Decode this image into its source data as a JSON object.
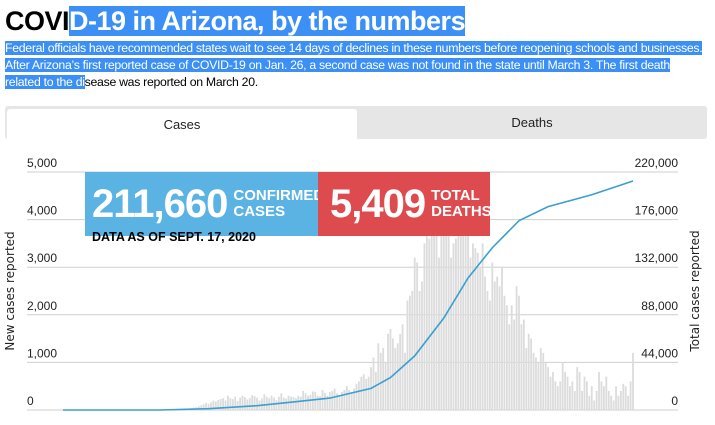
{
  "title_plain": "COVI",
  "title_highlighted": "D-19 in Arizona, by the numbers",
  "desc_highlighted": "Federal officials have recommended states wait to see 14 days of declines in these numbers before reopening schools and businesses. After Arizona’s first reported case of COVID-19 on Jan. 26, a second case was not found in the state until March 3. The first death related to the di",
  "desc_plain": "sease was reported on March 20.",
  "tabs": [
    {
      "label": "Cases",
      "active": true
    },
    {
      "label": "Deaths",
      "active": false
    }
  ],
  "stats": {
    "cases_value": "211,660",
    "cases_label1": "CONFIRMED",
    "cases_label2": "CASES",
    "deaths_value": "5,409",
    "deaths_label1": "TOTAL",
    "deaths_label2": "DEATHS",
    "as_of": "DATA AS OF SEPT. 17, 2020"
  },
  "colors": {
    "cases": "#5bb3e4",
    "deaths": "#de4b4f",
    "line": "#3a9fd1",
    "bars": "#dcdcdc"
  },
  "chart_data": {
    "type": "bar+line",
    "ylabel": "New cases reported",
    "y2label": "Total cases reported",
    "ylim": [
      0,
      5000
    ],
    "y2lim": [
      0,
      220000
    ],
    "yticks": [
      "0",
      "1,000",
      "2,000",
      "3,000",
      "4,000",
      "5,000"
    ],
    "y2ticks": [
      "0",
      "44,000",
      "88,000",
      "132,000",
      "176,000",
      "220,000"
    ],
    "x_start": "2020-01-26",
    "x_end": "2020-09-17",
    "bars_start_day": 49,
    "new_cases": [
      5,
      10,
      20,
      30,
      40,
      50,
      60,
      80,
      100,
      120,
      150,
      130,
      160,
      200,
      180,
      210,
      230,
      250,
      200,
      300,
      250,
      230,
      280,
      190,
      260,
      300,
      270,
      220,
      250,
      310,
      290,
      260,
      200,
      240,
      330,
      280,
      250,
      300,
      260,
      210,
      280,
      350,
      260,
      240,
      300,
      280,
      270,
      250,
      300,
      280,
      400,
      350,
      300,
      320,
      390,
      380,
      300,
      290,
      420,
      360,
      300,
      380,
      400,
      450,
      350,
      300,
      380,
      420,
      500,
      420,
      380,
      450,
      550,
      600,
      700,
      750,
      650,
      700,
      900,
      1100,
      800,
      1400,
      1200,
      1300,
      1000,
      1600,
      1700,
      1500,
      1300,
      1400,
      1600,
      1800,
      1200,
      2300,
      2400,
      2500,
      3200,
      3100,
      2500,
      2700,
      3500,
      3800,
      3600,
      3900,
      4000,
      3700,
      3200,
      4500,
      4800,
      4400,
      3800,
      3200,
      3500,
      3600,
      3700,
      3800,
      4000,
      4200,
      3900,
      3200,
      3500,
      3400,
      3300,
      3000,
      3500,
      2800,
      2500,
      2300,
      3100,
      2700,
      2800,
      2600,
      3000,
      2400,
      2200,
      1800,
      2200,
      1900,
      2600,
      2400,
      1800,
      1900,
      1300,
      1600,
      1500,
      1200,
      1100,
      1000,
      1300,
      1200,
      1000,
      900,
      700,
      800,
      600,
      500,
      600,
      1000,
      800,
      700,
      500,
      600,
      400,
      900,
      800,
      400,
      700,
      600,
      300,
      500,
      200,
      400,
      800,
      600,
      500,
      700,
      400,
      300,
      200,
      500,
      300,
      400,
      550,
      500,
      300,
      600,
      1200
    ],
    "total_cases": [
      [
        0,
        1
      ],
      [
        40,
        10
      ],
      [
        60,
        1200
      ],
      [
        80,
        4000
      ],
      [
        96,
        7700
      ],
      [
        110,
        11000
      ],
      [
        127,
        20000
      ],
      [
        135,
        30000
      ],
      [
        145,
        50000
      ],
      [
        157,
        85000
      ],
      [
        167,
        122000
      ],
      [
        177,
        150000
      ],
      [
        188,
        175000
      ],
      [
        200,
        188000
      ],
      [
        218,
        199000
      ],
      [
        235,
        211660
      ]
    ]
  }
}
